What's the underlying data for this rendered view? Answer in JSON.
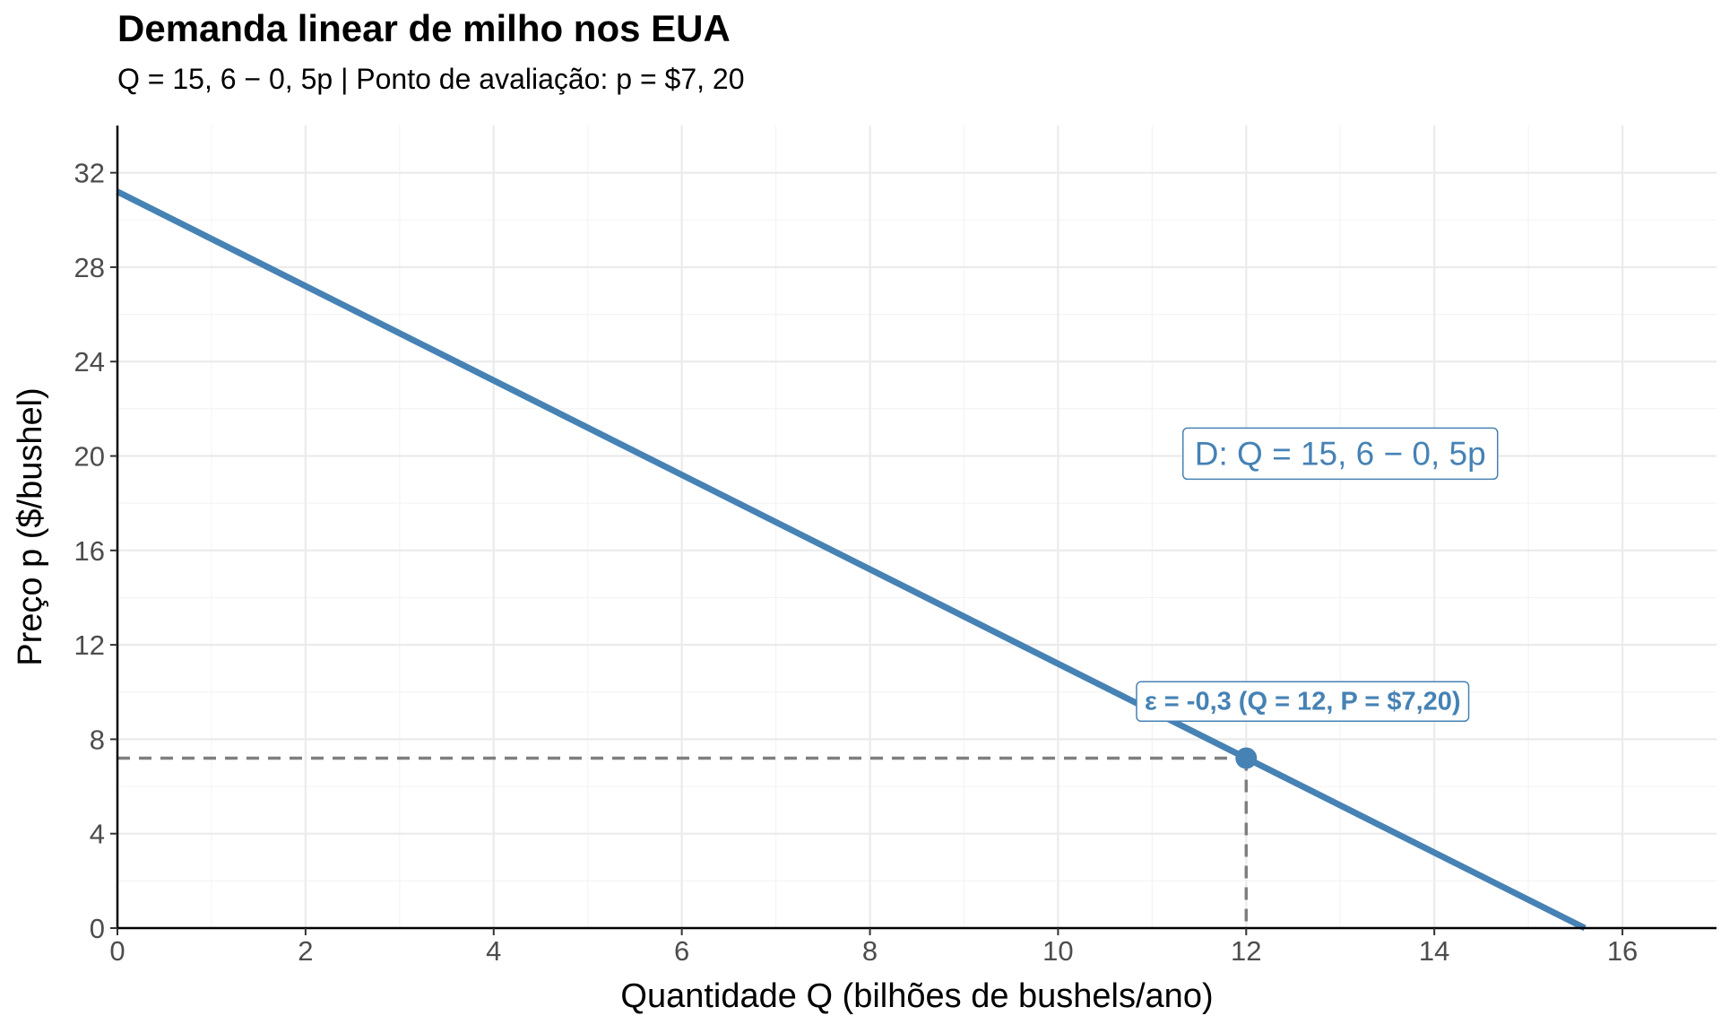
{
  "chart_data": {
    "type": "line",
    "title": "Demanda linear de milho nos EUA",
    "subtitle": "Q = 15, 6 − 0, 5p  |  Ponto de avaliação: p = $7, 20",
    "xlabel": "Quantidade Q (bilhões de bushels/ano)",
    "ylabel": "Preço p ($/bushel)",
    "xlim": [
      0,
      17
    ],
    "ylim": [
      0,
      34
    ],
    "x_ticks": [
      0,
      2,
      4,
      6,
      8,
      10,
      12,
      14,
      16
    ],
    "y_ticks": [
      0,
      4,
      8,
      12,
      16,
      20,
      24,
      28,
      32
    ],
    "grid": true,
    "series": [
      {
        "name": "D: Q = 15, 6 − 0, 5p",
        "color": "#4682b4",
        "x": [
          0,
          15.6
        ],
        "y": [
          31.2,
          0
        ]
      }
    ],
    "point": {
      "x": 12,
      "y": 7.2,
      "color": "#4682b4"
    },
    "reference_lines": {
      "x": 12,
      "y": 7.2,
      "color": "#7f7f7f",
      "style": "dashed"
    },
    "annotations": [
      {
        "text": "D: Q = 15, 6 − 0, 5p",
        "x": 13,
        "y": 20.1
      },
      {
        "text": "ε = -0,3 (Q = 12, P = $7,20)",
        "x": 12.6,
        "y": 9.6
      }
    ]
  }
}
